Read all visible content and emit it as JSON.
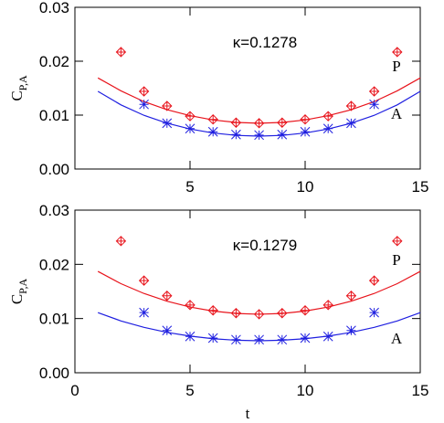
{
  "chart_data": [
    {
      "type": "scatter",
      "annotation": "κ=0.1278",
      "ylabel": "C",
      "ylabel_sub": "P,A",
      "xlim": [
        0,
        15
      ],
      "xticks": [
        5,
        10,
        15
      ],
      "ylim": [
        0,
        0.03
      ],
      "yticks": [
        {
          "value": 0,
          "label": "0.00"
        },
        {
          "value": 0.01,
          "label": "0.01"
        },
        {
          "value": 0.02,
          "label": "0.02"
        },
        {
          "value": 0.03,
          "label": "0.03"
        }
      ],
      "x": [
        2,
        3,
        4,
        5,
        6,
        7,
        8,
        9,
        10,
        11,
        12,
        13,
        14
      ],
      "fit_x": [
        1,
        2,
        3,
        4,
        5,
        6,
        7,
        8,
        9,
        10,
        11,
        12,
        13,
        14,
        15
      ],
      "series": [
        {
          "name": "P",
          "color": "#e8141c",
          "marker": "diamond",
          "values": [
            0.0217,
            0.0144,
            0.0117,
            0.0098,
            0.0092,
            0.0086,
            0.0085,
            0.0086,
            0.0092,
            0.0098,
            0.0117,
            0.0144,
            0.0217
          ],
          "fit": [
            0.0169,
            0.0145,
            0.0125,
            0.011,
            0.0099,
            0.0091,
            0.00865,
            0.0085,
            0.00865,
            0.0091,
            0.0099,
            0.011,
            0.0125,
            0.0145,
            0.0169
          ]
        },
        {
          "name": "A",
          "color": "#1f1fe0",
          "marker": "asterisk",
          "values": [
            null,
            0.012,
            0.0085,
            0.0075,
            0.0069,
            0.0064,
            0.0063,
            0.0064,
            0.0069,
            0.0075,
            0.0085,
            0.012,
            null
          ],
          "fit": [
            0.0144,
            0.0119,
            0.00996,
            0.0085,
            0.00742,
            0.00668,
            0.00624,
            0.0061,
            0.00624,
            0.00668,
            0.00742,
            0.0085,
            0.00996,
            0.0119,
            0.0144
          ]
        }
      ]
    },
    {
      "type": "scatter",
      "annotation": "κ=0.1279",
      "ylabel": "C",
      "ylabel_sub": "P,A",
      "xlabel": "t",
      "xlim": [
        0,
        15
      ],
      "xticks": [
        0,
        5,
        10,
        15
      ],
      "ylim": [
        0,
        0.03
      ],
      "yticks": [
        {
          "value": 0,
          "label": "0.00"
        },
        {
          "value": 0.01,
          "label": "0.01"
        },
        {
          "value": 0.02,
          "label": "0.02"
        },
        {
          "value": 0.03,
          "label": "0.03"
        }
      ],
      "x": [
        2,
        3,
        4,
        5,
        6,
        7,
        8,
        9,
        10,
        11,
        12,
        13,
        14
      ],
      "fit_x": [
        1,
        2,
        3,
        4,
        5,
        6,
        7,
        8,
        9,
        10,
        11,
        12,
        13,
        14,
        15
      ],
      "series": [
        {
          "name": "P",
          "color": "#e8141c",
          "marker": "diamond",
          "values": [
            0.0243,
            0.017,
            0.0142,
            0.0125,
            0.0115,
            0.011,
            0.0108,
            0.011,
            0.0115,
            0.0125,
            0.0142,
            0.017,
            0.0243
          ],
          "fit": [
            0.0187,
            0.01643,
            0.01462,
            0.0132,
            0.01213,
            0.01138,
            0.01094,
            0.0108,
            0.01094,
            0.01138,
            0.01213,
            0.0132,
            0.01462,
            0.01643,
            0.0187
          ]
        },
        {
          "name": "A",
          "color": "#1f1fe0",
          "marker": "asterisk",
          "values": [
            null,
            0.0111,
            0.0078,
            0.0067,
            0.0064,
            0.0061,
            0.0061,
            0.0061,
            0.0064,
            0.0067,
            0.0078,
            0.0111,
            null
          ],
          "fit": [
            0.0111,
            0.00956,
            0.00838,
            0.00745,
            0.00676,
            0.00628,
            0.006,
            0.0059,
            0.006,
            0.00628,
            0.00676,
            0.00745,
            0.00838,
            0.00956,
            0.0111
          ]
        }
      ]
    }
  ]
}
